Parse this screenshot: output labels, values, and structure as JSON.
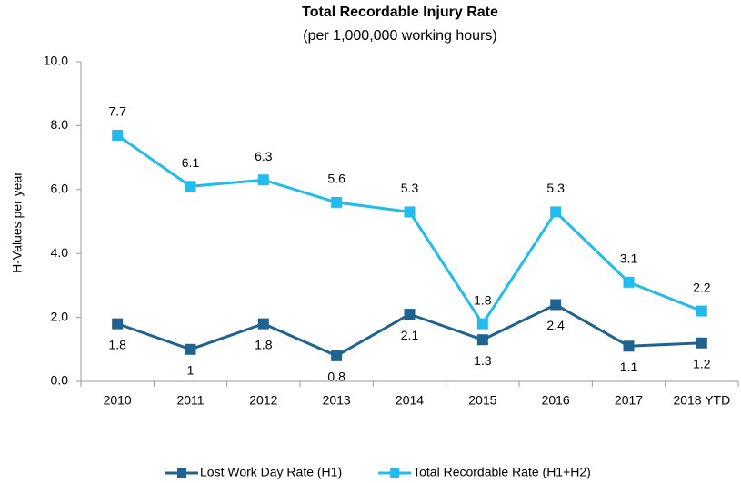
{
  "chart_data": {
    "type": "line",
    "title": "Total Recordable Injury Rate",
    "subtitle": "(per 1,000,000 working hours)",
    "y_label": "H-Values per year",
    "categories": [
      "2010",
      "2011",
      "2012",
      "2013",
      "2014",
      "2015",
      "2016",
      "2017",
      "2018 YTD"
    ],
    "series": [
      {
        "name": "Lost Work Day Rate (H1)",
        "color": "#1f6391",
        "values": [
          1.8,
          1.0,
          1.8,
          0.8,
          2.1,
          1.3,
          2.4,
          1.1,
          1.2
        ]
      },
      {
        "name": "Total Recordable Rate (H1+H2)",
        "color": "#22bbee",
        "values": [
          7.7,
          6.1,
          6.3,
          5.6,
          5.3,
          1.8,
          5.3,
          3.1,
          2.2
        ]
      }
    ],
    "ylim": [
      0,
      10
    ],
    "yticks": [
      {
        "value": 0,
        "label": "0.0"
      },
      {
        "value": 2,
        "label": "2.0"
      },
      {
        "value": 4,
        "label": "4.0"
      },
      {
        "value": 6,
        "label": "6.0"
      },
      {
        "value": 8,
        "label": "8.0"
      },
      {
        "value": 10,
        "label": "10.0"
      }
    ],
    "grid": false,
    "legend": "bottom"
  }
}
